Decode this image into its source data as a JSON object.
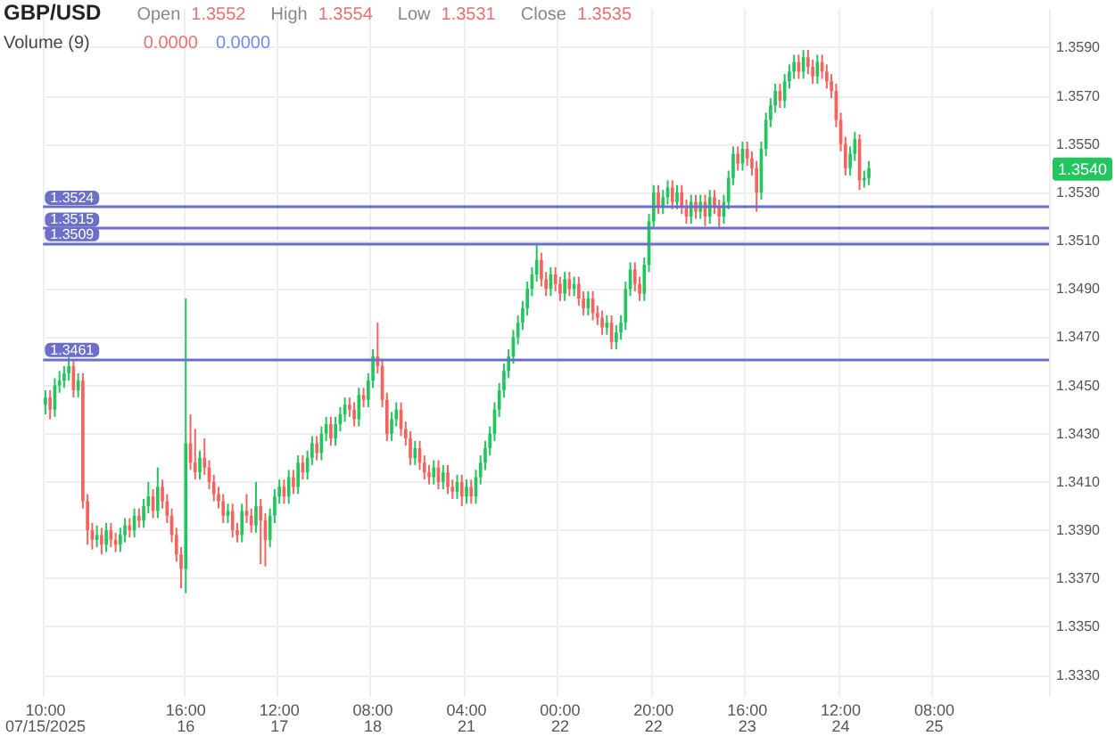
{
  "chart_data": {
    "type": "candlestick",
    "title": "GBP/USD",
    "annotations": [
      "Open",
      "1.3552",
      "High",
      "1.3554",
      "Low",
      "1.3531",
      "Close",
      "1.3535",
      "Volume (9)",
      "0.0000",
      "0.0000",
      {
        "text": "1.3540",
        "y": 1.354
      }
    ],
    "categories": [
      "10:00\n07/15/2025",
      null,
      null,
      null,
      null,
      null,
      null,
      null,
      null,
      null,
      null,
      null,
      null,
      null,
      null,
      null,
      null,
      null,
      null,
      null,
      null,
      null,
      null,
      null,
      null,
      null,
      null,
      null,
      null,
      null,
      "16:00\n16",
      null,
      null,
      null,
      null,
      null,
      null,
      null,
      null,
      null,
      null,
      null,
      null,
      null,
      null,
      null,
      null,
      null,
      null,
      null,
      "12:00\n17",
      null,
      null,
      null,
      null,
      null,
      null,
      null,
      null,
      null,
      null,
      null,
      null,
      null,
      null,
      null,
      null,
      null,
      null,
      null,
      "08:00\n18",
      null,
      null,
      null,
      null,
      null,
      null,
      null,
      null,
      null,
      null,
      null,
      null,
      null,
      null,
      null,
      null,
      null,
      null,
      null,
      "04:00\n21",
      null,
      null,
      null,
      null,
      null,
      null,
      null,
      null,
      null,
      null,
      null,
      null,
      null,
      null,
      null,
      null,
      null,
      null,
      null,
      "00:00\n22",
      null,
      null,
      null,
      null,
      null,
      null,
      null,
      null,
      null,
      null,
      null,
      null,
      null,
      null,
      null,
      null,
      null,
      null,
      null,
      "20:00\n22",
      null,
      null,
      null,
      null,
      null,
      null,
      null,
      null,
      null,
      null,
      null,
      null,
      null,
      null,
      null,
      null,
      null,
      null,
      null,
      "16:00\n23",
      null,
      null,
      null,
      null,
      null,
      null,
      null,
      null,
      null,
      null,
      null,
      null,
      null,
      null,
      null,
      null,
      null,
      null,
      null,
      "12:00\n24",
      null,
      null,
      null,
      null,
      null,
      null,
      null,
      null,
      null,
      null,
      null,
      null,
      null,
      null,
      null,
      null,
      null,
      null,
      null,
      "08:00\n25",
      null,
      null,
      null,
      null,
      null,
      null,
      null,
      null,
      null,
      null,
      null,
      null,
      null,
      null,
      null,
      null,
      null,
      null,
      null,
      null,
      null,
      null,
      null,
      null
    ],
    "ohlc": [
      [
        1.3442,
        1.3448,
        1.3438,
        1.3445
      ],
      [
        1.3445,
        1.3448,
        1.3436,
        1.344
      ],
      [
        1.344,
        1.3453,
        1.3437,
        1.345
      ],
      [
        1.345,
        1.3456,
        1.3447,
        1.3452
      ],
      [
        1.3452,
        1.3458,
        1.3449,
        1.3455
      ],
      [
        1.3455,
        1.3463,
        1.3452,
        1.3458
      ],
      [
        1.3458,
        1.3461,
        1.3445,
        1.3448
      ],
      [
        1.3448,
        1.3455,
        1.3445,
        1.3452
      ],
      [
        1.3452,
        1.3455,
        1.3399,
        1.3402
      ],
      [
        1.3402,
        1.3405,
        1.3384,
        1.339
      ],
      [
        1.339,
        1.3393,
        1.3382,
        1.3386
      ],
      [
        1.3386,
        1.3392,
        1.3383,
        1.3388
      ],
      [
        1.3388,
        1.3391,
        1.338,
        1.3384
      ],
      [
        1.3384,
        1.3393,
        1.3381,
        1.339
      ],
      [
        1.339,
        1.3393,
        1.3383,
        1.3386
      ],
      [
        1.3386,
        1.3389,
        1.3381,
        1.3384
      ],
      [
        1.3384,
        1.3391,
        1.3381,
        1.3388
      ],
      [
        1.3388,
        1.3395,
        1.3385,
        1.3392
      ],
      [
        1.3392,
        1.3395,
        1.3387,
        1.339
      ],
      [
        1.339,
        1.3399,
        1.3387,
        1.3396
      ],
      [
        1.3396,
        1.3399,
        1.3391,
        1.3394
      ],
      [
        1.3394,
        1.3403,
        1.3391,
        1.34
      ],
      [
        1.34,
        1.341,
        1.3397,
        1.3404
      ],
      [
        1.3404,
        1.3407,
        1.3395,
        1.3398
      ],
      [
        1.3398,
        1.3416,
        1.3395,
        1.3408
      ],
      [
        1.3408,
        1.3411,
        1.3399,
        1.3402
      ],
      [
        1.3402,
        1.3405,
        1.3393,
        1.3396
      ],
      [
        1.3396,
        1.3399,
        1.3385,
        1.3388
      ],
      [
        1.3388,
        1.3391,
        1.3377,
        1.338
      ],
      [
        1.338,
        1.3383,
        1.3366,
        1.3374
      ],
      [
        1.3374,
        1.3486,
        1.3364,
        1.3426
      ],
      [
        1.3426,
        1.3438,
        1.3415,
        1.3418
      ],
      [
        1.3418,
        1.3432,
        1.3411,
        1.3414
      ],
      [
        1.3414,
        1.3423,
        1.3411,
        1.342
      ],
      [
        1.342,
        1.3428,
        1.3413,
        1.3416
      ],
      [
        1.3416,
        1.3419,
        1.3407,
        1.341
      ],
      [
        1.341,
        1.3413,
        1.3402,
        1.3405
      ],
      [
        1.3405,
        1.3408,
        1.3399,
        1.3402
      ],
      [
        1.3402,
        1.3405,
        1.3393,
        1.3396
      ],
      [
        1.3396,
        1.3401,
        1.3393,
        1.3398
      ],
      [
        1.3398,
        1.3401,
        1.3387,
        1.339
      ],
      [
        1.339,
        1.3393,
        1.3385,
        1.3388
      ],
      [
        1.3388,
        1.3401,
        1.3385,
        1.3398
      ],
      [
        1.3398,
        1.3405,
        1.3393,
        1.3396
      ],
      [
        1.3396,
        1.3399,
        1.3389,
        1.3392
      ],
      [
        1.3392,
        1.341,
        1.3389,
        1.34
      ],
      [
        1.34,
        1.3403,
        1.3376,
        1.3394
      ],
      [
        1.3394,
        1.3397,
        1.3375,
        1.3386
      ],
      [
        1.3386,
        1.3399,
        1.3383,
        1.3396
      ],
      [
        1.3396,
        1.3407,
        1.3393,
        1.3404
      ],
      [
        1.3404,
        1.3411,
        1.3401,
        1.3408
      ],
      [
        1.3408,
        1.3411,
        1.3401,
        1.3404
      ],
      [
        1.3404,
        1.3415,
        1.3401,
        1.3412
      ],
      [
        1.3412,
        1.3415,
        1.3405,
        1.3408
      ],
      [
        1.3408,
        1.3421,
        1.3405,
        1.3418
      ],
      [
        1.3418,
        1.3421,
        1.3411,
        1.3414
      ],
      [
        1.3414,
        1.3423,
        1.3411,
        1.342
      ],
      [
        1.342,
        1.3429,
        1.3417,
        1.3426
      ],
      [
        1.3426,
        1.3429,
        1.3419,
        1.3422
      ],
      [
        1.3422,
        1.3433,
        1.3419,
        1.343
      ],
      [
        1.343,
        1.3437,
        1.3427,
        1.3434
      ],
      [
        1.3434,
        1.3437,
        1.3425,
        1.3428
      ],
      [
        1.3428,
        1.3437,
        1.3425,
        1.3434
      ],
      [
        1.3434,
        1.3441,
        1.3431,
        1.3438
      ],
      [
        1.3438,
        1.3445,
        1.3435,
        1.3442
      ],
      [
        1.3442,
        1.3445,
        1.3437,
        1.344
      ],
      [
        1.344,
        1.3443,
        1.3433,
        1.3436
      ],
      [
        1.3436,
        1.3449,
        1.3433,
        1.3446
      ],
      [
        1.3446,
        1.3449,
        1.3441,
        1.3444
      ],
      [
        1.3444,
        1.3455,
        1.3441,
        1.3452
      ],
      [
        1.3452,
        1.3465,
        1.3449,
        1.3462
      ],
      [
        1.3462,
        1.3476,
        1.3455,
        1.3458
      ],
      [
        1.3458,
        1.3461,
        1.3441,
        1.3444
      ],
      [
        1.3444,
        1.3447,
        1.3427,
        1.343
      ],
      [
        1.343,
        1.3439,
        1.3427,
        1.3436
      ],
      [
        1.3436,
        1.3443,
        1.3433,
        1.344
      ],
      [
        1.344,
        1.3443,
        1.3429,
        1.3432
      ],
      [
        1.3432,
        1.3435,
        1.3425,
        1.3428
      ],
      [
        1.3428,
        1.3431,
        1.3417,
        1.342
      ],
      [
        1.342,
        1.3427,
        1.3417,
        1.3424
      ],
      [
        1.3424,
        1.3427,
        1.3415,
        1.3418
      ],
      [
        1.3418,
        1.3421,
        1.3411,
        1.3414
      ],
      [
        1.3414,
        1.3417,
        1.3409,
        1.3412
      ],
      [
        1.3412,
        1.3419,
        1.3409,
        1.3416
      ],
      [
        1.3416,
        1.3419,
        1.3407,
        1.341
      ],
      [
        1.341,
        1.3417,
        1.3407,
        1.3414
      ],
      [
        1.3414,
        1.3417,
        1.3405,
        1.3408
      ],
      [
        1.3408,
        1.3411,
        1.3403,
        1.3406
      ],
      [
        1.3406,
        1.3413,
        1.3403,
        1.341
      ],
      [
        1.341,
        1.3413,
        1.34,
        1.3404
      ],
      [
        1.3404,
        1.3411,
        1.3401,
        1.3408
      ],
      [
        1.3408,
        1.3411,
        1.3401,
        1.3404
      ],
      [
        1.3404,
        1.3415,
        1.3401,
        1.3412
      ],
      [
        1.3412,
        1.3421,
        1.3409,
        1.3418
      ],
      [
        1.3418,
        1.3427,
        1.3415,
        1.3424
      ],
      [
        1.3424,
        1.3433,
        1.3421,
        1.343
      ],
      [
        1.343,
        1.3443,
        1.3427,
        1.344
      ],
      [
        1.344,
        1.3451,
        1.3437,
        1.3448
      ],
      [
        1.3448,
        1.3459,
        1.3445,
        1.3456
      ],
      [
        1.3456,
        1.3465,
        1.3453,
        1.3462
      ],
      [
        1.3462,
        1.3473,
        1.3459,
        1.347
      ],
      [
        1.347,
        1.3479,
        1.3467,
        1.3476
      ],
      [
        1.3476,
        1.3485,
        1.3473,
        1.3482
      ],
      [
        1.3482,
        1.3493,
        1.3479,
        1.349
      ],
      [
        1.349,
        1.3499,
        1.3487,
        1.3496
      ],
      [
        1.3496,
        1.3509,
        1.3493,
        1.3502
      ],
      [
        1.3502,
        1.3505,
        1.3491,
        1.3494
      ],
      [
        1.3494,
        1.3497,
        1.3487,
        1.349
      ],
      [
        1.349,
        1.3499,
        1.3487,
        1.3496
      ],
      [
        1.3496,
        1.3499,
        1.3489,
        1.3492
      ],
      [
        1.3492,
        1.3495,
        1.3485,
        1.3488
      ],
      [
        1.3488,
        1.3497,
        1.3485,
        1.3494
      ],
      [
        1.3494,
        1.3497,
        1.3487,
        1.349
      ],
      [
        1.349,
        1.3495,
        1.3487,
        1.3492
      ],
      [
        1.3492,
        1.3495,
        1.3483,
        1.3486
      ],
      [
        1.3486,
        1.3489,
        1.3479,
        1.3482
      ],
      [
        1.3482,
        1.3489,
        1.3479,
        1.3486
      ],
      [
        1.3486,
        1.3489,
        1.3477,
        1.348
      ],
      [
        1.348,
        1.3483,
        1.3475,
        1.3478
      ],
      [
        1.3478,
        1.3481,
        1.3471,
        1.3474
      ],
      [
        1.3474,
        1.3479,
        1.3471,
        1.3476
      ],
      [
        1.3476,
        1.3479,
        1.3465,
        1.3468
      ],
      [
        1.3468,
        1.3475,
        1.3465,
        1.3472
      ],
      [
        1.3472,
        1.3479,
        1.3469,
        1.3476
      ],
      [
        1.3476,
        1.3493,
        1.3473,
        1.349
      ],
      [
        1.349,
        1.3501,
        1.3487,
        1.3498
      ],
      [
        1.3498,
        1.3501,
        1.3489,
        1.3492
      ],
      [
        1.3492,
        1.3495,
        1.3485,
        1.3488
      ],
      [
        1.3488,
        1.3503,
        1.3485,
        1.35
      ],
      [
        1.35,
        1.3521,
        1.3497,
        1.3518
      ],
      [
        1.3518,
        1.3533,
        1.3515,
        1.353
      ],
      [
        1.353,
        1.3533,
        1.3521,
        1.3524
      ],
      [
        1.3524,
        1.3531,
        1.3521,
        1.3528
      ],
      [
        1.3528,
        1.3535,
        1.3525,
        1.3532
      ],
      [
        1.3532,
        1.3535,
        1.3523,
        1.3526
      ],
      [
        1.3526,
        1.3533,
        1.3523,
        1.353
      ],
      [
        1.353,
        1.3533,
        1.3521,
        1.3524
      ],
      [
        1.3524,
        1.3527,
        1.3517,
        1.352
      ],
      [
        1.352,
        1.3529,
        1.3517,
        1.3526
      ],
      [
        1.3526,
        1.3529,
        1.3519,
        1.3522
      ],
      [
        1.3522,
        1.3529,
        1.3519,
        1.3526
      ],
      [
        1.3526,
        1.3529,
        1.3516,
        1.352
      ],
      [
        1.352,
        1.3531,
        1.3517,
        1.3528
      ],
      [
        1.3528,
        1.3531,
        1.3521,
        1.3524
      ],
      [
        1.3524,
        1.3527,
        1.3515,
        1.352
      ],
      [
        1.352,
        1.3529,
        1.3517,
        1.3526
      ],
      [
        1.3526,
        1.3539,
        1.3523,
        1.3536
      ],
      [
        1.3536,
        1.3549,
        1.3533,
        1.3546
      ],
      [
        1.3546,
        1.3549,
        1.3539,
        1.3542
      ],
      [
        1.3542,
        1.3551,
        1.3539,
        1.3548
      ],
      [
        1.3548,
        1.3551,
        1.3541,
        1.3544
      ],
      [
        1.3544,
        1.3547,
        1.3537,
        1.354
      ],
      [
        1.354,
        1.3543,
        1.3522,
        1.353
      ],
      [
        1.353,
        1.3551,
        1.3527,
        1.3548
      ],
      [
        1.3548,
        1.3563,
        1.3545,
        1.356
      ],
      [
        1.356,
        1.3569,
        1.3557,
        1.3566
      ],
      [
        1.3566,
        1.3575,
        1.3563,
        1.3572
      ],
      [
        1.3572,
        1.3575,
        1.3565,
        1.3568
      ],
      [
        1.3568,
        1.3579,
        1.3565,
        1.3576
      ],
      [
        1.3576,
        1.3583,
        1.3573,
        1.358
      ],
      [
        1.358,
        1.3587,
        1.3577,
        1.3584
      ],
      [
        1.3584,
        1.3587,
        1.3577,
        1.358
      ],
      [
        1.358,
        1.3589,
        1.3577,
        1.3586
      ],
      [
        1.3586,
        1.3589,
        1.3579,
        1.3582
      ],
      [
        1.3582,
        1.3585,
        1.3575,
        1.3578
      ],
      [
        1.3578,
        1.3587,
        1.3575,
        1.3584
      ],
      [
        1.3584,
        1.3587,
        1.3577,
        1.358
      ],
      [
        1.358,
        1.3583,
        1.3573,
        1.3576
      ],
      [
        1.3576,
        1.3579,
        1.3569,
        1.3572
      ],
      [
        1.3572,
        1.3575,
        1.3557,
        1.356
      ],
      [
        1.356,
        1.3563,
        1.3547,
        1.355
      ],
      [
        1.355,
        1.3553,
        1.3537,
        1.354
      ],
      [
        1.354,
        1.3549,
        1.3537,
        1.3546
      ],
      [
        1.3546,
        1.3555,
        1.3543,
        1.3552
      ],
      [
        1.3552,
        1.3554,
        1.3531,
        1.3535
      ],
      [
        1.3535,
        1.3539,
        1.3532,
        1.3536
      ],
      [
        1.3536,
        1.3543,
        1.3533,
        1.354
      ],
      null,
      null,
      null,
      null,
      null,
      null,
      null,
      null,
      null,
      null,
      null,
      null,
      null,
      null,
      null,
      null,
      null,
      null,
      null,
      null,
      null,
      null,
      null,
      null,
      null,
      null,
      null,
      null,
      null,
      null,
      null,
      null,
      null,
      null,
      null,
      null,
      null,
      null
    ],
    "colors": [
      "#22c55e",
      "#f6635f",
      "#22c55e",
      "#22c55e",
      "#22c55e",
      "#22c55e",
      "#f6635f",
      "#22c55e",
      "#f6635f",
      "#f6635f",
      "#f6635f",
      "#22c55e",
      "#f6635f",
      "#22c55e",
      "#f6635f",
      "#f6635f",
      "#22c55e",
      "#22c55e",
      "#f6635f",
      "#22c55e",
      "#f6635f",
      "#22c55e",
      "#22c55e",
      "#f6635f",
      "#22c55e",
      "#f6635f",
      "#f6635f",
      "#f6635f",
      "#f6635f",
      "#f6635f",
      "#22c55e",
      "#f6635f",
      "#f6635f",
      "#22c55e",
      "#f6635f",
      "#f6635f",
      "#f6635f",
      "#f6635f",
      "#f6635f",
      "#22c55e",
      "#f6635f",
      "#f6635f",
      "#22c55e",
      "#f6635f",
      "#f6635f",
      "#22c55e",
      "#f6635f",
      "#f6635f",
      "#22c55e",
      "#22c55e",
      "#22c55e",
      "#f6635f",
      "#22c55e",
      "#f6635f",
      "#22c55e",
      "#f6635f",
      "#22c55e",
      "#22c55e",
      "#f6635f",
      "#22c55e",
      "#22c55e",
      "#f6635f",
      "#22c55e",
      "#22c55e",
      "#22c55e",
      "#f6635f",
      "#f6635f",
      "#22c55e",
      "#f6635f",
      "#22c55e",
      "#22c55e",
      "#f6635f",
      "#f6635f",
      "#f6635f",
      "#22c55e",
      "#22c55e",
      "#f6635f",
      "#f6635f",
      "#f6635f",
      "#22c55e",
      "#f6635f",
      "#f6635f",
      "#f6635f",
      "#22c55e",
      "#f6635f",
      "#22c55e",
      "#f6635f",
      "#f6635f",
      "#22c55e",
      "#f6635f",
      "#22c55e",
      "#f6635f",
      "#22c55e",
      "#22c55e",
      "#22c55e",
      "#22c55e",
      "#22c55e",
      "#22c55e",
      "#22c55e",
      "#22c55e",
      "#22c55e",
      "#22c55e",
      "#22c55e",
      "#22c55e",
      "#22c55e",
      "#22c55e",
      "#f6635f",
      "#f6635f",
      "#22c55e",
      "#f6635f",
      "#f6635f",
      "#22c55e",
      "#f6635f",
      "#22c55e",
      "#f6635f",
      "#f6635f",
      "#22c55e",
      "#f6635f",
      "#f6635f",
      "#f6635f",
      "#22c55e",
      "#f6635f",
      "#22c55e",
      "#22c55e",
      "#22c55e",
      "#22c55e",
      "#f6635f",
      "#f6635f",
      "#22c55e",
      "#22c55e",
      "#22c55e",
      "#f6635f",
      "#22c55e",
      "#22c55e",
      "#f6635f",
      "#22c55e",
      "#f6635f",
      "#f6635f",
      "#22c55e",
      "#f6635f",
      "#22c55e",
      "#f6635f",
      "#22c55e",
      "#f6635f",
      "#f6635f",
      "#22c55e",
      "#22c55e",
      "#22c55e",
      "#f6635f",
      "#22c55e",
      "#f6635f",
      "#f6635f",
      "#f6635f",
      "#22c55e",
      "#22c55e",
      "#22c55e",
      "#22c55e",
      "#f6635f",
      "#22c55e",
      "#22c55e",
      "#22c55e",
      "#f6635f",
      "#22c55e",
      "#f6635f",
      "#f6635f",
      "#22c55e",
      "#f6635f",
      "#f6635f",
      "#f6635f",
      "#f6635f",
      "#f6635f",
      "#f6635f",
      "#22c55e",
      "#22c55e",
      "#f6635f",
      "#22c55e",
      "#22c55e",
      null,
      null,
      null,
      null,
      null,
      null,
      null,
      null,
      null,
      null,
      null,
      null,
      null,
      null,
      null,
      null,
      null,
      null,
      null,
      null,
      null,
      null,
      null,
      null,
      null,
      null,
      null,
      null,
      null,
      null,
      null,
      null,
      null,
      null,
      null,
      null,
      null,
      null
    ],
    "ylim": [
      1.3321,
      1.3606
    ],
    "yticks": [
      {
        "value": 1.333,
        "label": "1.3330"
      },
      {
        "value": 1.335,
        "label": "1.3350"
      },
      {
        "value": 1.337,
        "label": "1.3370"
      },
      {
        "value": 1.339,
        "label": "1.3390"
      },
      {
        "value": 1.341,
        "label": "1.3410"
      },
      {
        "value": 1.343,
        "label": "1.3430"
      },
      {
        "value": 1.345,
        "label": "1.3450"
      },
      {
        "value": 1.347,
        "label": "1.3470"
      },
      {
        "value": 1.349,
        "label": "1.3490"
      },
      {
        "value": 1.351,
        "label": "1.3510"
      },
      {
        "value": 1.353,
        "label": "1.3530"
      },
      {
        "value": 1.355,
        "label": "1.3550"
      },
      {
        "value": 1.357,
        "label": "1.3570"
      },
      {
        "value": 1.359,
        "label": "1.3590"
      }
    ],
    "ref_lines": [
      {
        "axis": "y",
        "value": 1.3524,
        "label": "1.3524",
        "color": "#6c6fc8"
      },
      {
        "axis": "y",
        "value": 1.3515,
        "label": "1.3515",
        "color": "#6c6fc8"
      },
      {
        "axis": "y",
        "value": 1.3509,
        "label": "1.3509",
        "color": "#6c6fc8"
      },
      {
        "axis": "y",
        "value": 1.3461,
        "label": "1.3461",
        "color": "#6c6fc8"
      }
    ],
    "grid": true
  }
}
